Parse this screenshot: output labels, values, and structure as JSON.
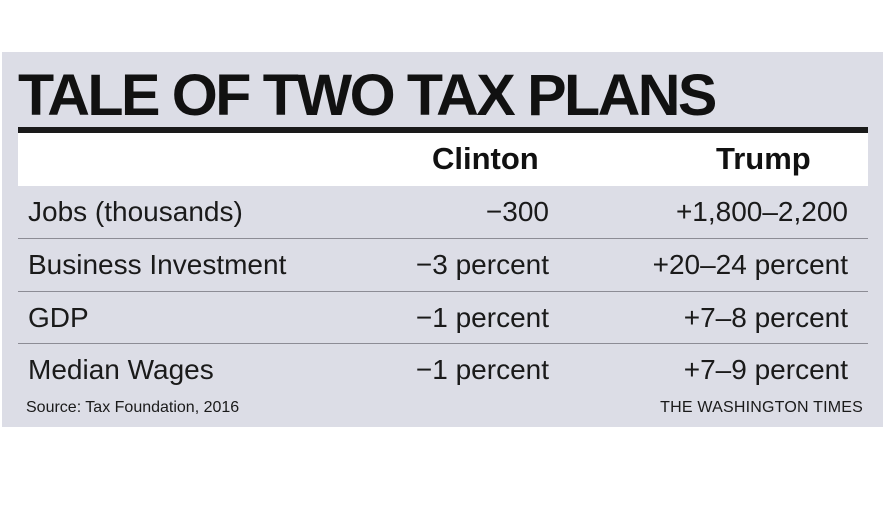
{
  "chart_data": {
    "type": "table",
    "title": "TALE OF TWO TAX PLANS",
    "columns": [
      "Clinton",
      "Trump"
    ],
    "rows": [
      {
        "label": "Jobs (thousands)",
        "clinton": "−300",
        "trump": "+1,800–2,200"
      },
      {
        "label": "Business Investment",
        "clinton": "−3 percent",
        "trump": "+20–24 percent"
      },
      {
        "label": "GDP",
        "clinton": "−1 percent",
        "trump": "+7–8 percent"
      },
      {
        "label": "Median Wages",
        "clinton": "−1 percent",
        "trump": "+7–9 percent"
      }
    ],
    "source": "Source: Tax Foundation, 2016",
    "credit": "THE WASHINGTON TIMES"
  },
  "colors": {
    "background": "#dcdde6",
    "header_band": "#ffffff",
    "text": "#1a1a1a",
    "rule": "#1a1a1a"
  }
}
